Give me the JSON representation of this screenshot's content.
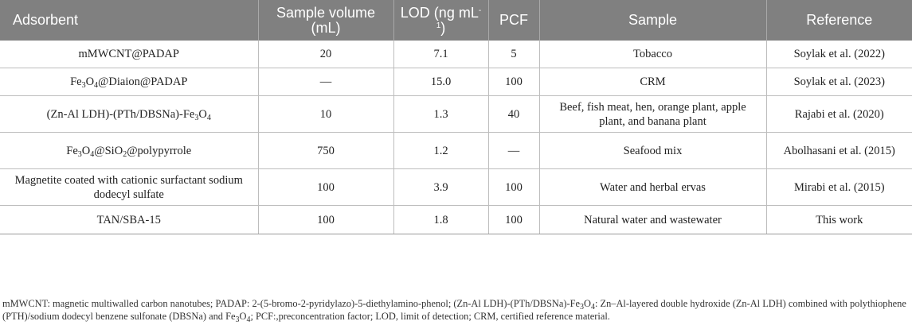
{
  "table": {
    "headers": [
      {
        "id": "adsorbent",
        "label": "Adsorbent"
      },
      {
        "id": "sample-volume",
        "label": "Sample volume (mL)"
      },
      {
        "id": "lod",
        "label_main": "LOD (ng mL",
        "label_sup": "-1",
        "label_end": ")"
      },
      {
        "id": "pcf",
        "label": "PCF"
      },
      {
        "id": "sample",
        "label": "Sample"
      },
      {
        "id": "reference",
        "label": "Reference"
      }
    ],
    "rows": [
      {
        "adsorbent": "mMWCNT@PADAP",
        "volume": "20",
        "lod": "7.1",
        "pcf": "5",
        "sample": "Tobacco",
        "reference": "Soylak et al. (2022)"
      },
      {
        "adsorbent_parts": [
          "Fe",
          "3",
          "O",
          "4",
          "@Diaion@PADAP"
        ],
        "volume": "—",
        "lod": "15.0",
        "pcf": "100",
        "sample": "CRM",
        "reference": "Soylak et al. (2023)"
      },
      {
        "adsorbent_parts": [
          "(Zn-Al LDH)-(PTh/DBSNa)-Fe",
          "3",
          "O",
          "4"
        ],
        "volume": "10",
        "lod": "1.3",
        "pcf": "40",
        "sample": "Beef, fish meat, hen, orange plant, apple plant, and banana plant",
        "reference": "Rajabi et al. (2020)"
      },
      {
        "adsorbent_parts": [
          "Fe",
          "3",
          "O",
          "4",
          "@SiO",
          "2",
          "@polypyrrole"
        ],
        "volume": "750",
        "lod": "1.2",
        "pcf": "—",
        "sample": "Seafood mix",
        "reference": "Abolhasani et al. (2015)"
      },
      {
        "adsorbent": "Magnetite coated with cationic surfactant sodium dodecyl sulfate",
        "volume": "100",
        "lod": "3.9",
        "pcf": "100",
        "sample": "Water and herbal ervas",
        "reference": "Mirabi et al. (2015)"
      },
      {
        "adsorbent": "TAN/SBA-15",
        "volume": "100",
        "lod": "1.8",
        "pcf": "100",
        "sample": "Natural water and wastewater",
        "reference": "This work"
      }
    ]
  },
  "footnote": {
    "part1": "mMWCNT: magnetic multiwalled carbon nanotubes; PADAP: 2-(5-bromo-2-pyridylazo)-5-diethylamino-phenol; (Zn-Al LDH)-(PTh/DBSNa)-Fe",
    "sub1": "3",
    "part2": "O",
    "sub2": "4",
    "part3": ": Zn–Al-layered double hydroxide (Zn-Al LDH) combined with polythiophene (PTH)/sodium dodecyl benzene sulfonate (DBSNa) and Fe",
    "sub3": "3",
    "part4": "O",
    "sub4": "4",
    "part5": "; PCF:,preconcentration factor; LOD, limit of detection; CRM, certified reference material."
  }
}
